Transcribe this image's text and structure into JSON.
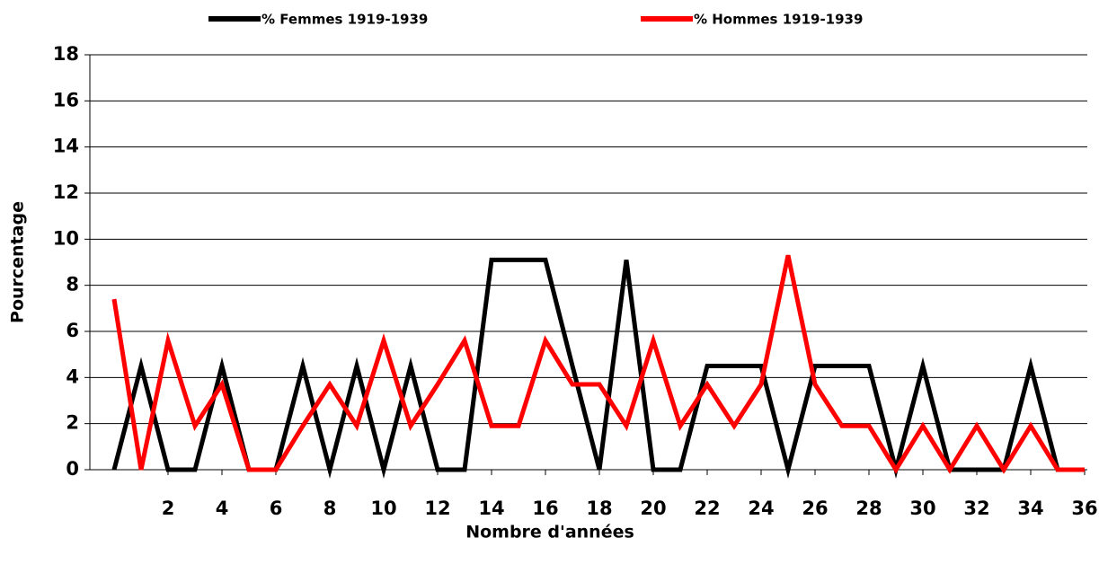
{
  "chart_data": {
    "type": "line",
    "xlabel": "Nombre d'années",
    "ylabel": "Pourcentage",
    "x": [
      0,
      1,
      2,
      3,
      4,
      5,
      6,
      7,
      8,
      9,
      10,
      11,
      12,
      13,
      14,
      15,
      16,
      17,
      18,
      19,
      20,
      21,
      22,
      23,
      24,
      25,
      26,
      27,
      28,
      29,
      30,
      31,
      32,
      33,
      34,
      35,
      36
    ],
    "series": [
      {
        "name": "% Femmes 1919-1939",
        "color": "#000000",
        "values": [
          0,
          4.5,
          0,
          0,
          4.5,
          0,
          0,
          4.5,
          0,
          4.5,
          0,
          4.5,
          0,
          0,
          9.1,
          9.1,
          9.1,
          4.5,
          0,
          9.1,
          0,
          0,
          4.5,
          4.5,
          4.5,
          0,
          4.5,
          4.5,
          4.5,
          0,
          4.5,
          0,
          0,
          0,
          4.5,
          0,
          0
        ]
      },
      {
        "name": "% Hommes 1919-1939",
        "color": "#ff0000",
        "values": [
          7.4,
          0,
          5.6,
          1.9,
          3.7,
          0,
          0,
          1.9,
          3.7,
          1.9,
          5.6,
          1.9,
          3.7,
          5.6,
          1.9,
          1.9,
          5.6,
          3.7,
          3.7,
          1.9,
          5.6,
          1.9,
          3.7,
          1.9,
          3.7,
          9.3,
          3.7,
          1.9,
          1.9,
          0,
          1.9,
          0,
          1.9,
          0,
          1.9,
          0,
          0
        ]
      }
    ],
    "xlim": [
      -0.9,
      36.1
    ],
    "xticks": [
      2,
      4,
      6,
      8,
      10,
      12,
      14,
      16,
      18,
      20,
      22,
      24,
      26,
      28,
      30,
      32,
      34,
      36
    ],
    "ylim": [
      0,
      18
    ],
    "yticks": [
      0,
      2,
      4,
      6,
      8,
      10,
      12,
      14,
      16,
      18
    ],
    "grid": true,
    "legend": "top"
  }
}
